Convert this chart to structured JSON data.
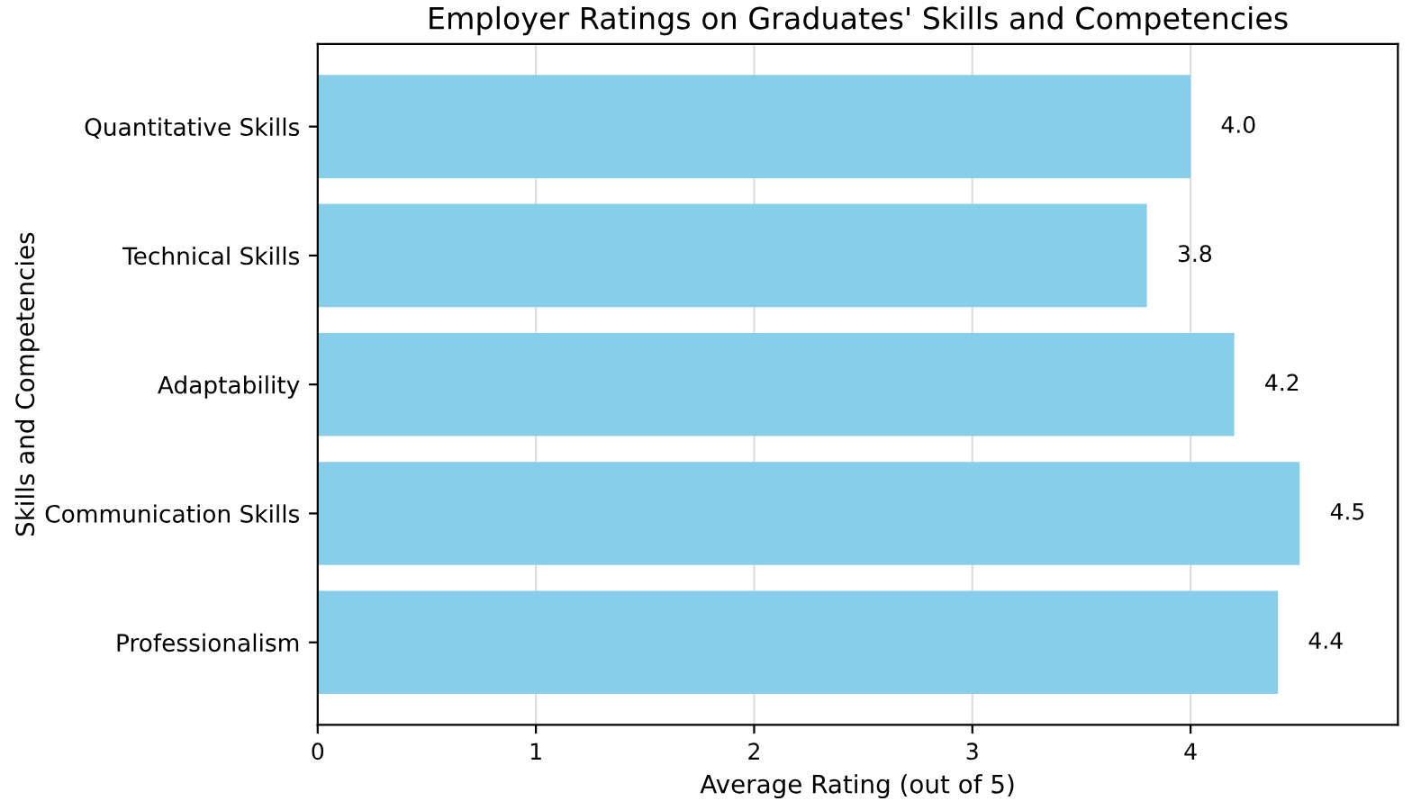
{
  "chart_data": {
    "type": "bar",
    "orientation": "horizontal",
    "title": "Employer Ratings on Graduates' Skills and Competencies",
    "xlabel": "Average Rating (out of 5)",
    "ylabel": "Skills and Competencies",
    "categories": [
      "Quantitative Skills",
      "Technical Skills",
      "Adaptability",
      "Communication Skills",
      "Professionalism"
    ],
    "values": [
      4.0,
      3.8,
      4.2,
      4.5,
      4.4
    ],
    "value_labels": [
      "4.0",
      "3.8",
      "4.2",
      "4.5",
      "4.4"
    ],
    "color": "#87ceeb",
    "xlim": [
      0,
      4.95
    ],
    "xticks": [
      0,
      1,
      2,
      3,
      4
    ],
    "grid": "x"
  }
}
